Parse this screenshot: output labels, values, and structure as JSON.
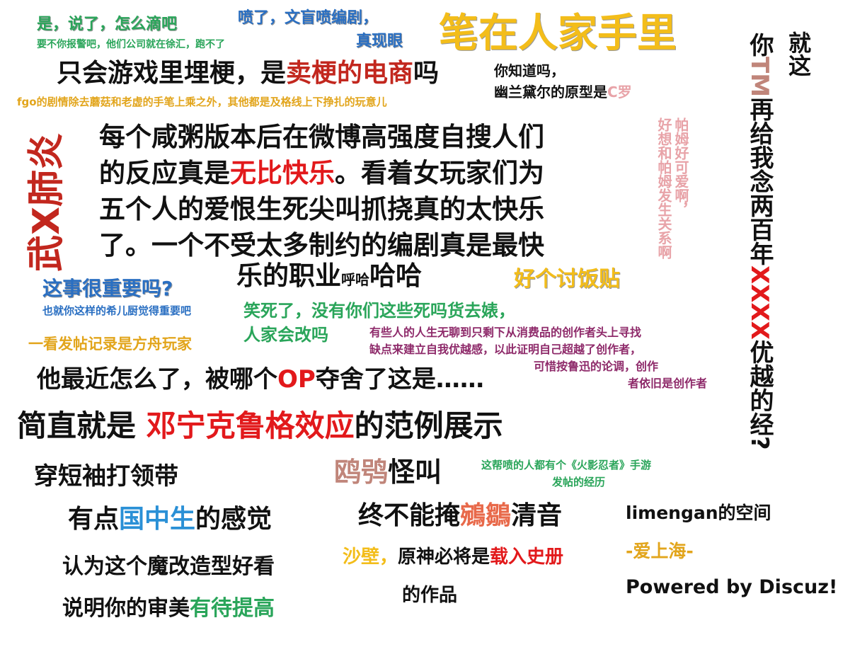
{
  "colors": {
    "green": "#2aa55a",
    "blue": "#2a6fc2",
    "gold": "#f3bd1a",
    "red": "#e2191b",
    "crimson": "#c2271e",
    "orange": "#e2a51c",
    "pink": "#e8a3a8",
    "brown": "#c0857a",
    "purple": "#8e2a6a",
    "dark": "#111111"
  },
  "p1": {
    "line1": "是，说了，怎么滴吧",
    "line2": "要不你报警吧，他们公司就在徐汇，跑不了"
  },
  "p2": {
    "line1": "喷了，文盲喷编剧，",
    "line2": "真现眼"
  },
  "p3": {
    "text": "笔在人家手里"
  },
  "p4": {
    "text": "就这"
  },
  "p5": {
    "a": "你",
    "b": "TM",
    "c": "再给我念两百年",
    "d": "XXXX",
    "e": "优越的经?"
  },
  "p6": {
    "a": "只会游戏里埋梗，是",
    "b": "卖梗的电商",
    "c": "吗"
  },
  "p7": {
    "line1": "你知道吗，",
    "line2a": "幽兰黛尔的原型是",
    "line2b": "C罗"
  },
  "p8": {
    "text": "fgo的剧情除去蘑菇和老虚的手笔上乘之外，其他都是及格线上下挣扎的玩意儿"
  },
  "p9": {
    "text": "武X肺炎"
  },
  "p10": {
    "l1": "每个咸粥版本后在微博高强度自搜人们",
    "l2a": "的反应真是",
    "l2b": "无比快乐",
    "l2c": "。看着女玩家们为",
    "l3": "五个人的爱恨生死尖叫抓挠真的太快乐",
    "l4": "了。一个不受太多制约的编剧真是最快",
    "l5a": "乐的职业",
    "l5b": "呼哈",
    "l5c": "哈哈"
  },
  "p11": {
    "col1": "帕姆好可爱啊，",
    "col2": "好想和帕姆发生关系啊"
  },
  "p12": {
    "line1": "这事很重要吗?",
    "line2": "也就你这样的希儿厨觉得重要吧"
  },
  "p13": {
    "text": "好个讨饭贴"
  },
  "p14": {
    "line1": "笑死了，没有你们这些死吗货去婊，",
    "line2": "人家会改吗"
  },
  "p15": {
    "text": "一看发帖记录是方舟玩家"
  },
  "p16": {
    "l1": "有些人的人生无聊到只剩下从消费品的创作者头上寻找",
    "l2": "缺点来建立自我优越感，以此证明自己超越了创作者，",
    "l3": "可惜按鲁迅的论调，创作",
    "l4": "者依旧是创作者"
  },
  "p17": {
    "a": "他最近怎么了，被哪个",
    "b": "OP",
    "c": "夺舍了这是……"
  },
  "p18": {
    "a": "简直就是 ",
    "b": "邓宁克鲁格效应",
    "c": "的范例展示"
  },
  "p19": {
    "text": "穿短袖打领带"
  },
  "p20": {
    "a": "鸥鸮",
    "b": "怪叫"
  },
  "p21": {
    "line1": "这帮喷的人都有个《火影忍者》手游",
    "line2": "发帖的经历"
  },
  "p22": {
    "a": "有点",
    "b": "国中生",
    "c": "的感觉"
  },
  "p23": {
    "a": "终不能掩",
    "b": "鵷鶵",
    "c": "清音"
  },
  "p24": {
    "text": "limengan的空间"
  },
  "p25": {
    "text": "-爱上海-"
  },
  "p26": {
    "a": "沙壁，",
    "b": "原神必将是",
    "c": "载入史册",
    "d": "的作品"
  },
  "p27": {
    "text": "认为这个魔改造型好看"
  },
  "p28": {
    "a": "说明你的审美",
    "b": "有待提高"
  },
  "p29": {
    "text": "Powered by Discuz!"
  }
}
